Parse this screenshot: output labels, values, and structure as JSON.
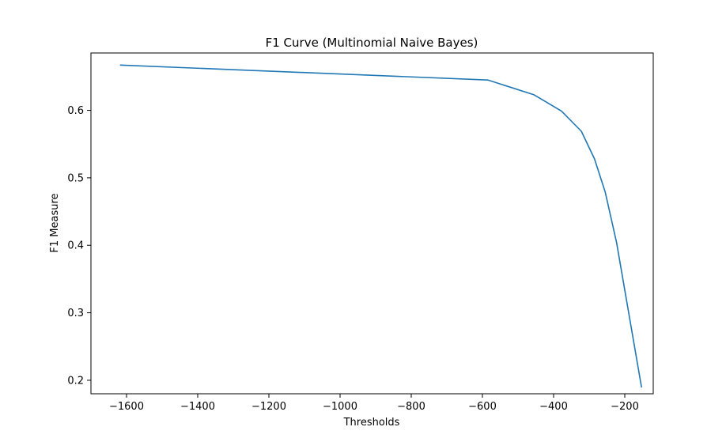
{
  "chart_data": {
    "type": "line",
    "title": "F1 Curve (Multinomial Naive Bayes)",
    "xlabel": "Thresholds",
    "ylabel": "F1 Measure",
    "xlim": [
      -1700,
      -120
    ],
    "ylim": [
      0.18,
      0.685
    ],
    "grid": false,
    "x_ticks": [
      -1600,
      -1400,
      -1200,
      -1000,
      -800,
      -600,
      -400,
      -200
    ],
    "x_tick_labels": [
      "−1600",
      "−1400",
      "−1200",
      "−1000",
      "−800",
      "−600",
      "−400",
      "−200"
    ],
    "y_ticks": [
      0.2,
      0.3,
      0.4,
      0.5,
      0.6
    ],
    "y_tick_labels": [
      "0.2",
      "0.3",
      "0.4",
      "0.5",
      "0.6"
    ],
    "colors": {
      "line": "#1f77b4"
    },
    "series": [
      {
        "x": [
          -1617,
          -585,
          -455,
          -378,
          -322,
          -285,
          -255,
          -223,
          -153
        ],
        "y": [
          0.667,
          0.645,
          0.623,
          0.599,
          0.569,
          0.528,
          0.479,
          0.404,
          0.19
        ]
      }
    ]
  }
}
